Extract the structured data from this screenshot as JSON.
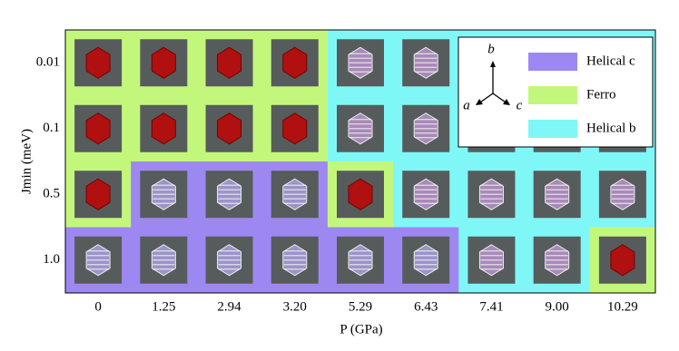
{
  "chart_data": {
    "type": "phase-diagram",
    "xlabel": "P (GPa)",
    "ylabel": "Jmin (meV)",
    "categories": [
      "0",
      "1.25",
      "2.94",
      "3.20",
      "5.29",
      "6.43",
      "7.41",
      "9.00",
      "10.29"
    ],
    "rows": [
      "0.01",
      "0.1",
      "0.5",
      "1.0"
    ],
    "series": [
      {
        "name": "Helical c",
        "color": "#9d88f2"
      },
      {
        "name": "Ferro",
        "color": "#c3f77b"
      },
      {
        "name": "Helical b",
        "color": "#80f7f7"
      }
    ],
    "cells": [
      [
        "Ferro",
        "Ferro",
        "Ferro",
        "Ferro",
        "Helical b",
        "Helical b",
        "Helical b",
        "Helical b",
        "Helical b"
      ],
      [
        "Ferro",
        "Ferro",
        "Ferro",
        "Ferro",
        "Helical b",
        "Helical b",
        "Helical b",
        "Helical b",
        "Helical b"
      ],
      [
        "Ferro",
        "Helical c",
        "Helical c",
        "Helical c",
        "Ferro",
        "Helical b",
        "Helical b",
        "Helical b",
        "Helical b"
      ],
      [
        "Helical c",
        "Helical c",
        "Helical c",
        "Helical c",
        "Helical c",
        "Helical c",
        "Helical b",
        "Helical b",
        "Ferro"
      ]
    ],
    "inset_axes": [
      "a",
      "b",
      "c"
    ]
  }
}
